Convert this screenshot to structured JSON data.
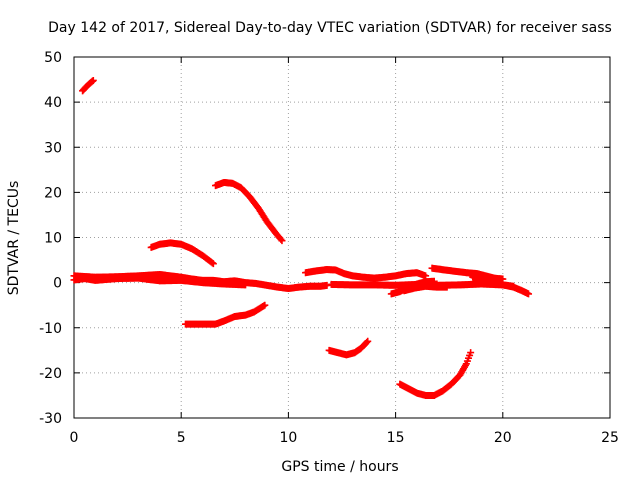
{
  "chart_data": {
    "type": "scatter",
    "title": "Day 142 of 2017, Sidereal Day-to-day VTEC variation (SDTVAR) for receiver sass",
    "xlabel": "GPS time / hours",
    "ylabel": "SDTVAR / TECUs",
    "xlim": [
      0,
      25
    ],
    "ylim": [
      -30,
      50
    ],
    "xticks": [
      "0",
      "5",
      "10",
      "15",
      "20",
      "25"
    ],
    "yticks": [
      "-30",
      "-20",
      "-10",
      "0",
      "10",
      "20",
      "30",
      "40",
      "50"
    ],
    "grid": true,
    "marker": "+",
    "color": "#ff0000",
    "series": [
      {
        "points": [
          [
            0.4,
            42.5
          ],
          [
            0.55,
            43.3
          ],
          [
            0.7,
            44.0
          ],
          [
            0.9,
            44.8
          ]
        ]
      },
      {
        "points": [
          [
            0.0,
            1.5
          ],
          [
            1.0,
            1.2
          ],
          [
            2.0,
            1.3
          ],
          [
            3.0,
            1.5
          ],
          [
            4.0,
            1.8
          ],
          [
            5.0,
            1.2
          ],
          [
            5.5,
            0.8
          ],
          [
            6.0,
            0.5
          ],
          [
            6.5,
            0.5
          ],
          [
            7.0,
            0.2
          ],
          [
            7.5,
            0.4
          ],
          [
            8.0,
            0.0
          ],
          [
            8.5,
            -0.2
          ],
          [
            9.0,
            -0.6
          ],
          [
            9.5,
            -1.0
          ],
          [
            10.0,
            -1.3
          ],
          [
            10.5,
            -1.0
          ],
          [
            11.0,
            -0.8
          ],
          [
            11.5,
            -0.8
          ],
          [
            11.8,
            -0.6
          ]
        ]
      },
      {
        "points": [
          [
            0.0,
            0.6
          ],
          [
            0.5,
            0.9
          ],
          [
            1.0,
            0.5
          ],
          [
            2.0,
            0.9
          ],
          [
            3.0,
            1.0
          ],
          [
            4.0,
            0.4
          ],
          [
            5.0,
            0.5
          ],
          [
            6.0,
            0.0
          ],
          [
            7.0,
            -0.3
          ],
          [
            8.0,
            -0.5
          ]
        ]
      },
      {
        "points": [
          [
            3.6,
            7.8
          ],
          [
            4.0,
            8.5
          ],
          [
            4.5,
            8.8
          ],
          [
            5.0,
            8.5
          ],
          [
            5.5,
            7.5
          ],
          [
            6.0,
            6.0
          ],
          [
            6.5,
            4.2
          ]
        ]
      },
      {
        "points": [
          [
            6.6,
            21.5
          ],
          [
            7.0,
            22.2
          ],
          [
            7.4,
            22.0
          ],
          [
            7.8,
            21.0
          ],
          [
            8.2,
            19.0
          ],
          [
            8.6,
            16.5
          ],
          [
            9.0,
            13.5
          ],
          [
            9.4,
            11.0
          ],
          [
            9.7,
            9.3
          ]
        ]
      },
      {
        "points": [
          [
            5.2,
            -9.2
          ],
          [
            6.0,
            -9.2
          ],
          [
            6.6,
            -9.2
          ],
          [
            7.0,
            -8.5
          ],
          [
            7.5,
            -7.5
          ],
          [
            8.0,
            -7.2
          ],
          [
            8.4,
            -6.5
          ],
          [
            8.9,
            -5.0
          ]
        ]
      },
      {
        "points": [
          [
            10.8,
            2.2
          ],
          [
            11.3,
            2.6
          ],
          [
            11.8,
            2.9
          ],
          [
            12.2,
            2.8
          ],
          [
            12.6,
            2.0
          ],
          [
            13.0,
            1.5
          ],
          [
            13.5,
            1.2
          ],
          [
            14.0,
            1.0
          ],
          [
            14.5,
            1.2
          ],
          [
            15.0,
            1.5
          ],
          [
            15.5,
            2.0
          ],
          [
            16.0,
            2.2
          ],
          [
            16.4,
            1.5
          ]
        ]
      },
      {
        "points": [
          [
            12.0,
            -0.4
          ],
          [
            13.0,
            -0.5
          ],
          [
            14.0,
            -0.5
          ],
          [
            15.0,
            -0.6
          ],
          [
            16.0,
            -0.4
          ],
          [
            17.0,
            -0.6
          ],
          [
            18.0,
            -0.5
          ],
          [
            19.0,
            -0.3
          ],
          [
            20.0,
            -0.5
          ],
          [
            20.5,
            -0.8
          ]
        ]
      },
      {
        "points": [
          [
            14.8,
            -2.5
          ],
          [
            15.2,
            -2.0
          ],
          [
            15.6,
            -1.0
          ],
          [
            16.0,
            -0.3
          ],
          [
            16.4,
            0.2
          ],
          [
            16.8,
            0.3
          ]
        ]
      },
      {
        "points": [
          [
            15.4,
            -1.8
          ],
          [
            15.9,
            -1.2
          ],
          [
            16.4,
            -0.8
          ],
          [
            16.9,
            -1.0
          ],
          [
            17.4,
            -1.0
          ]
        ]
      },
      {
        "points": [
          [
            16.7,
            3.2
          ],
          [
            17.3,
            2.8
          ],
          [
            17.8,
            2.5
          ],
          [
            18.3,
            2.2
          ],
          [
            18.8,
            2.0
          ],
          [
            19.2,
            1.5
          ],
          [
            19.6,
            1.0
          ],
          [
            20.0,
            0.8
          ]
        ]
      },
      {
        "points": [
          [
            18.6,
            1.2
          ],
          [
            19.0,
            0.5
          ],
          [
            19.5,
            0.0
          ],
          [
            20.0,
            -0.5
          ],
          [
            20.5,
            -1.0
          ],
          [
            20.9,
            -1.8
          ],
          [
            21.2,
            -2.5
          ]
        ]
      },
      {
        "points": [
          [
            11.9,
            -15.0
          ],
          [
            12.3,
            -15.5
          ],
          [
            12.7,
            -16.0
          ],
          [
            13.1,
            -15.5
          ],
          [
            13.4,
            -14.5
          ],
          [
            13.7,
            -13.0
          ]
        ]
      },
      {
        "points": [
          [
            15.2,
            -22.5
          ],
          [
            15.6,
            -23.5
          ],
          [
            16.0,
            -24.5
          ],
          [
            16.4,
            -25.0
          ],
          [
            16.8,
            -25.0
          ],
          [
            17.2,
            -24.0
          ],
          [
            17.6,
            -22.5
          ],
          [
            18.0,
            -20.5
          ],
          [
            18.3,
            -18.0
          ],
          [
            18.5,
            -15.5
          ]
        ]
      }
    ]
  }
}
